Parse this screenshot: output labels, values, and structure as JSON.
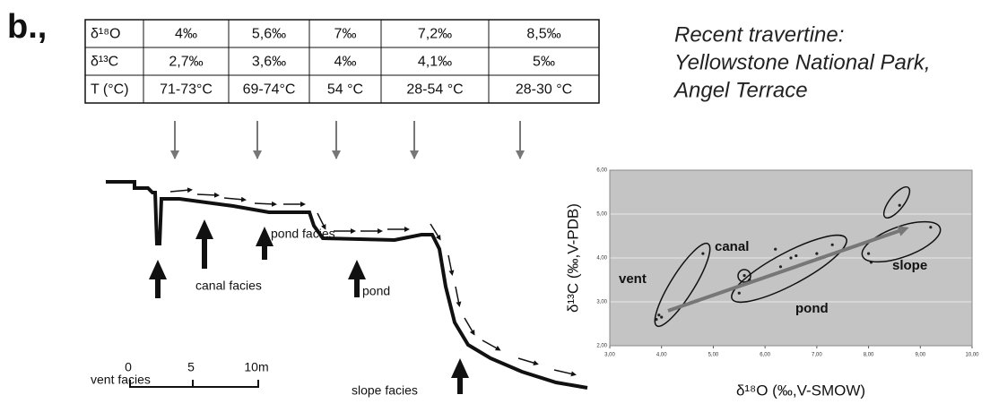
{
  "figure_label": "b.,",
  "table": {
    "rows": [
      [
        "δ¹⁸O",
        "4‰",
        "5,6‰",
        "7‰",
        "7,2‰",
        "8,5‰"
      ],
      [
        "δ¹³C",
        "2,7‰",
        "3,6‰",
        "4‰",
        "4,1‰",
        "5‰"
      ],
      [
        "T (°C)",
        "71-73°C",
        "69-74°C",
        "54 °C",
        "28-54 °C",
        "28-30 °C"
      ]
    ]
  },
  "caption": [
    "Recent travertine:",
    "Yellowstone National Park,",
    "Angel Terrace"
  ],
  "diagram": {
    "labels": [
      "vent facies",
      "canal facies",
      "pond facies",
      "pond",
      "slope facies"
    ],
    "scale": [
      "0",
      "5",
      "10m"
    ]
  },
  "chart_data": {
    "type": "scatter",
    "x": [
      3.9,
      3.95,
      4.0,
      4.8,
      5.6,
      5.5,
      5.7,
      6.2,
      6.3,
      6.5,
      6.6,
      7.0,
      7.3,
      8.0,
      8.05,
      8.6,
      9.2
    ],
    "values": [
      2.6,
      2.7,
      2.65,
      4.1,
      3.6,
      3.2,
      3.5,
      4.2,
      3.8,
      4.0,
      4.05,
      4.1,
      4.3,
      4.1,
      3.9,
      5.2,
      4.7
    ],
    "color": "#222222",
    "groups": [
      "vent",
      "canal",
      "pond",
      "slope"
    ],
    "xlabel": "δ¹⁸O (‰,V-SMOW)",
    "ylabel": "δ¹³C (‰,V-PDB)",
    "xlim": [
      3,
      10
    ],
    "ylim": [
      2,
      6
    ],
    "xticks": [
      {
        "value": 3,
        "label": "3,00"
      },
      {
        "value": 4,
        "label": "4,00"
      },
      {
        "value": 5,
        "label": "5,00"
      },
      {
        "value": 6,
        "label": "6,00"
      },
      {
        "value": 7,
        "label": "7,00"
      },
      {
        "value": 8,
        "label": "8,00"
      },
      {
        "value": 9,
        "label": "9,00"
      },
      {
        "value": 10,
        "label": "10,00"
      }
    ],
    "yticks": [
      {
        "value": 2,
        "label": "2,00"
      },
      {
        "value": 3,
        "label": "3,00"
      },
      {
        "value": 4,
        "label": "4,00"
      },
      {
        "value": 5,
        "label": "5,00"
      },
      {
        "value": 6,
        "label": "6,00"
      }
    ],
    "grid": true
  }
}
